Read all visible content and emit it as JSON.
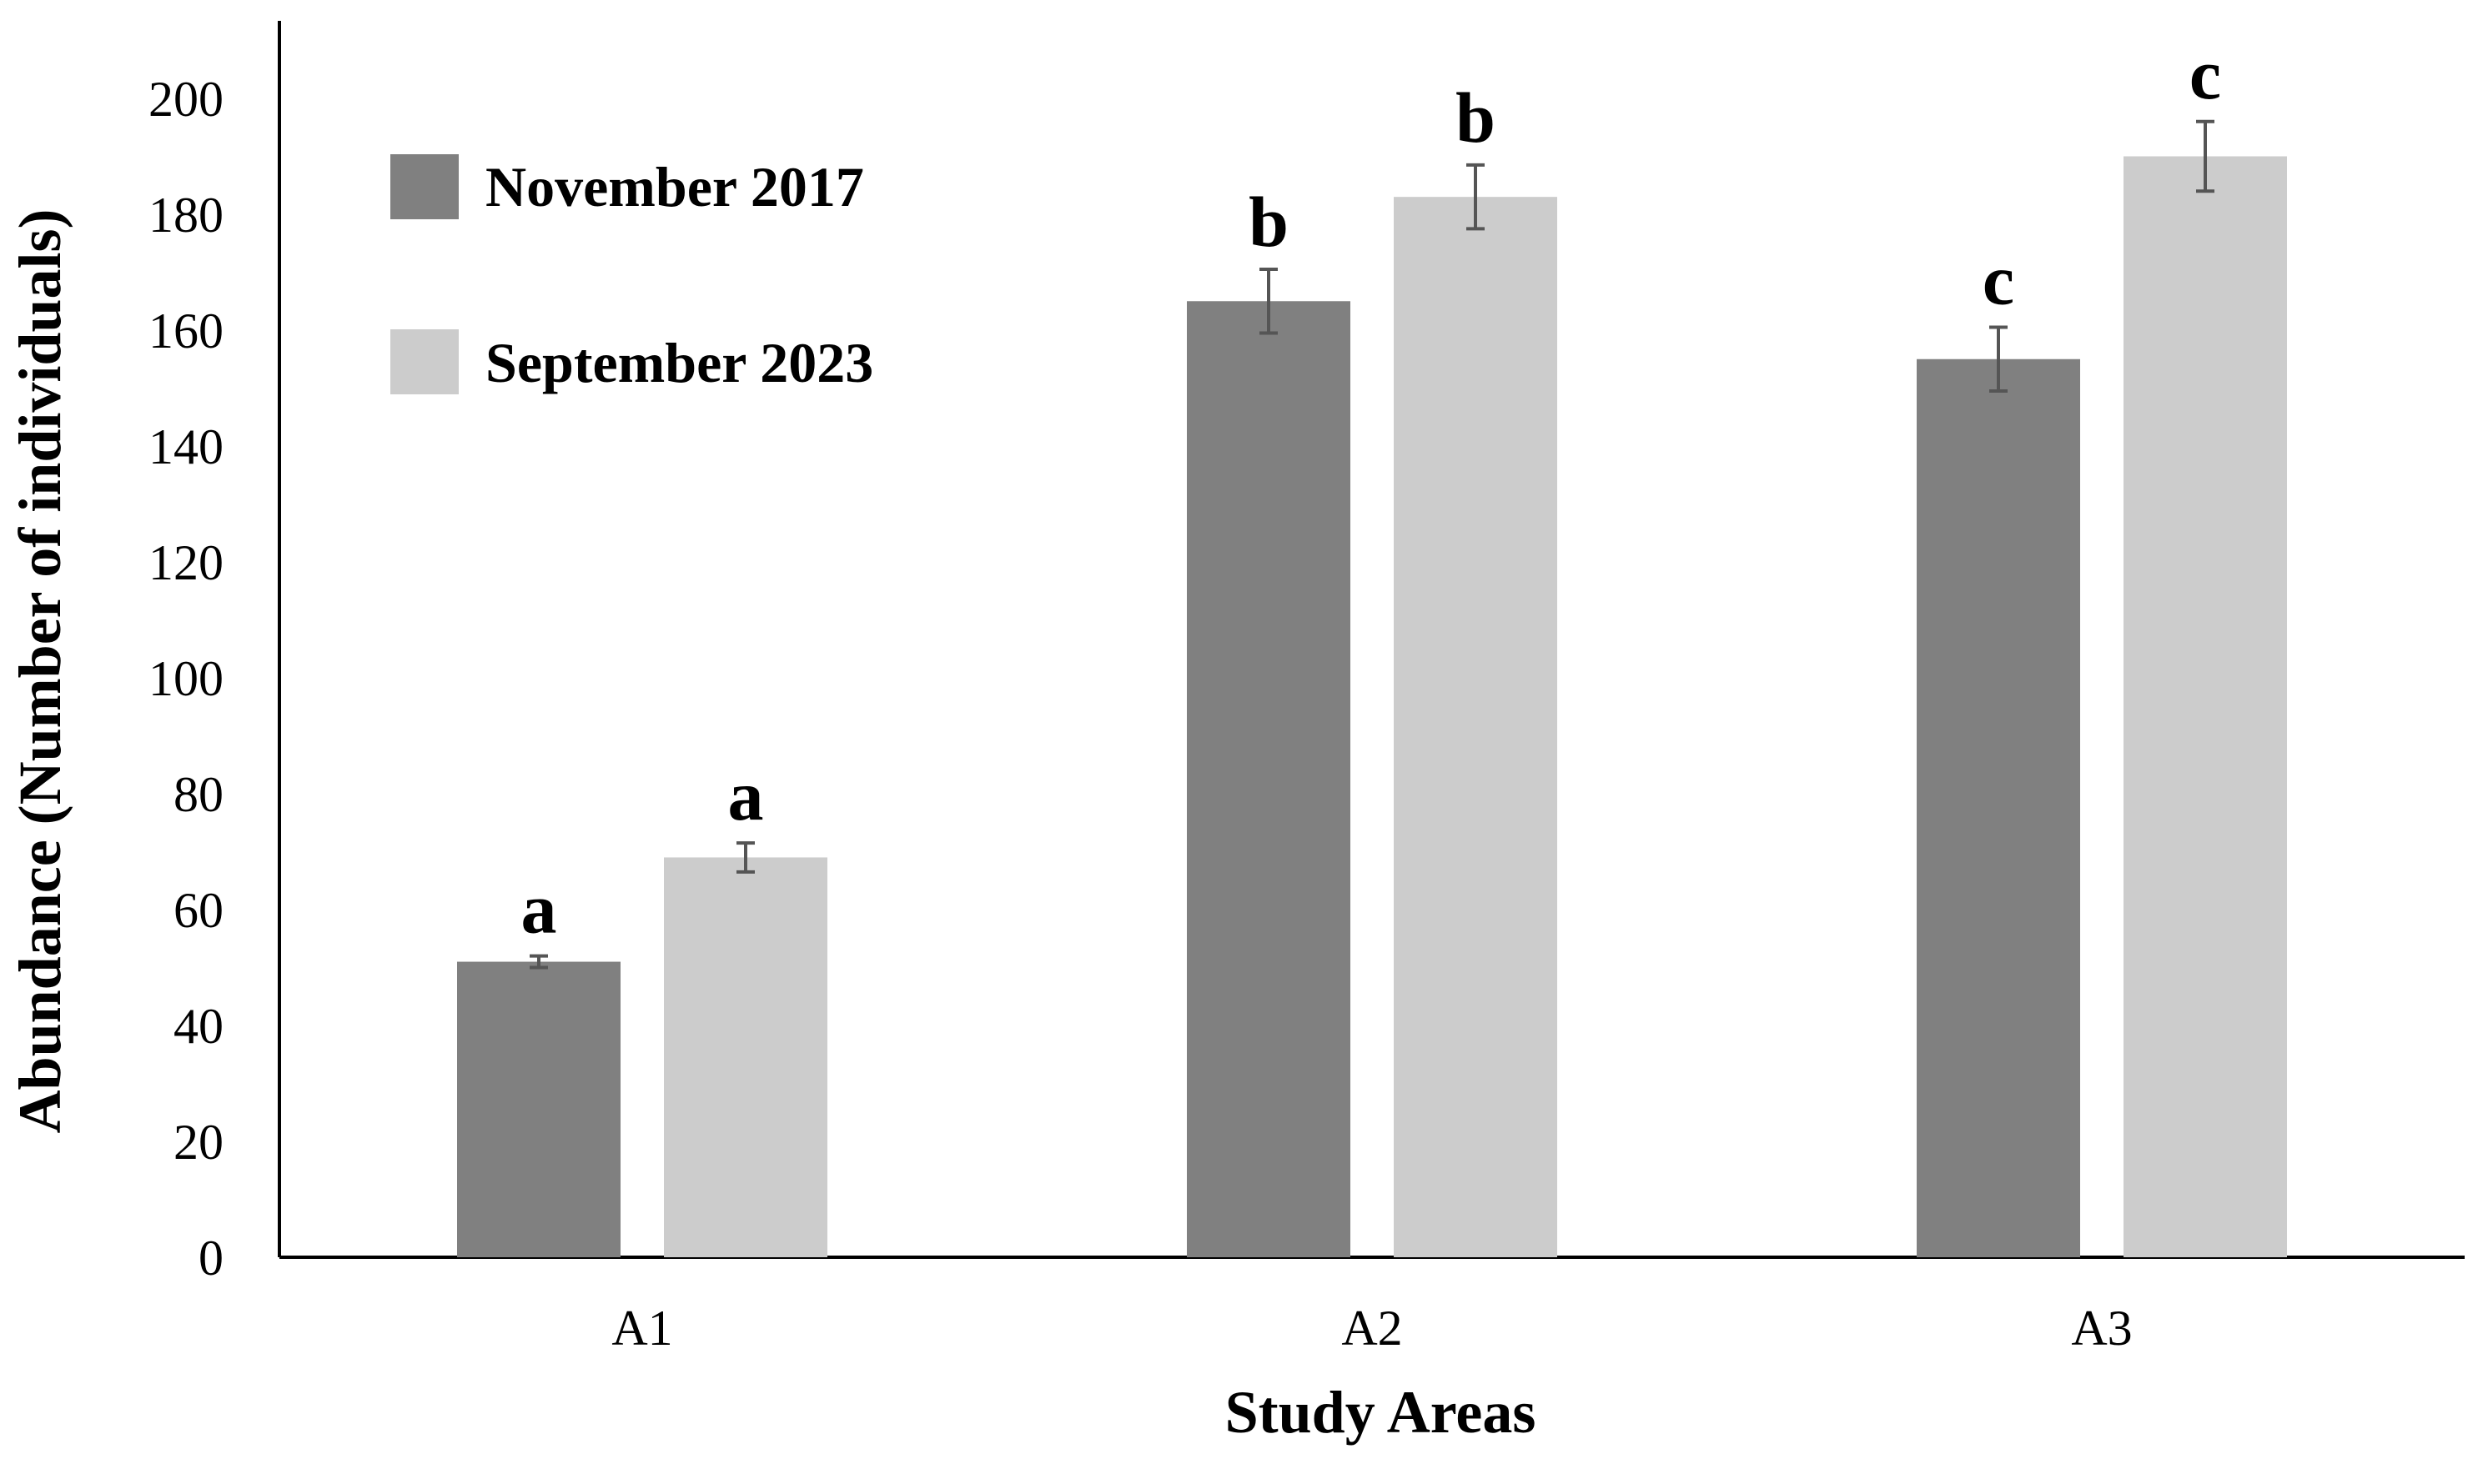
{
  "chart_data": {
    "type": "bar",
    "title": "",
    "xlabel": "Study Areas",
    "ylabel": "Abundance (Number of individuals)",
    "ylim": [
      0,
      200
    ],
    "yticks": [
      0,
      20,
      40,
      60,
      80,
      100,
      120,
      140,
      160,
      180,
      200
    ],
    "categories": [
      "A1",
      "A2",
      "A3"
    ],
    "grid": false,
    "legend_position": "top-left",
    "series": [
      {
        "name": "November 2017",
        "color": "#808080",
        "values": [
          51,
          165,
          155
        ],
        "errors": [
          1,
          5.5,
          5.5
        ],
        "labels": [
          "a",
          "b",
          "c"
        ]
      },
      {
        "name": "September 2023",
        "color": "#cccccc",
        "values": [
          69,
          183,
          190
        ],
        "errors": [
          2.5,
          5.5,
          6
        ],
        "labels": [
          "a",
          "b",
          "c"
        ]
      }
    ]
  }
}
